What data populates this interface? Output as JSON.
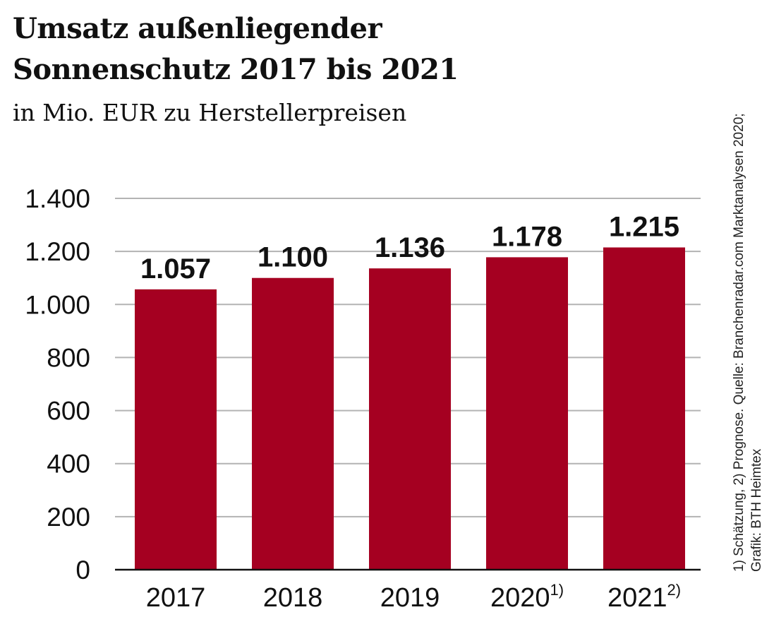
{
  "chart_data": {
    "type": "bar",
    "title_line1": "Umsatz außenliegender",
    "title_line2": "Sonnenschutz 2017 bis 2021",
    "subtitle": "in Mio. EUR zu Herstellerpreisen",
    "categories": [
      "2017",
      "2018",
      "2019",
      "2020",
      "2021"
    ],
    "category_footnotes": [
      "",
      "",
      "",
      "1)",
      "2)"
    ],
    "values": [
      1057,
      1100,
      1136,
      1178,
      1215
    ],
    "data_labels": [
      "1.057",
      "1.100",
      "1.136",
      "1.178",
      "1.215"
    ],
    "ylim": [
      0,
      1400
    ],
    "yticks": [
      0,
      200,
      400,
      600,
      800,
      1000,
      1200,
      1400
    ],
    "ytick_labels": [
      "0",
      "200",
      "400",
      "600",
      "800",
      "1.000",
      "1.200",
      "1.400"
    ],
    "grid": true,
    "bar_color": "#a50021",
    "source_line1": "1) Schätzung, 2) Prognose. Quelle: Branchenradar.com Marktanalysen 2020;",
    "source_line2": "Grafik: BTH Heimtex"
  }
}
